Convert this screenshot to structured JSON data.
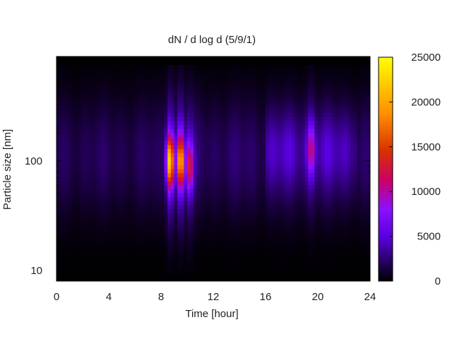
{
  "chart_data": {
    "type": "heatmap",
    "title": "dN / d log d (5/9/1)",
    "xlabel": "Time [hour]",
    "ylabel": "Particle size [nm]",
    "xlim": [
      0,
      24
    ],
    "ylim": [
      8,
      900
    ],
    "y_scale": "log",
    "x_ticks": [
      0,
      4,
      8,
      12,
      16,
      20,
      24
    ],
    "y_ticks": [
      10,
      100
    ],
    "colorbar": {
      "range": [
        0,
        25000
      ],
      "ticks": [
        0,
        5000,
        10000,
        15000,
        20000,
        25000
      ],
      "colormap": [
        "#000000",
        "#7a00ff",
        "#cc0044",
        "#ff8800",
        "#ffff00"
      ]
    },
    "grid": false,
    "features": [
      {
        "time_hour": 8.7,
        "size_nm": 100,
        "value": 17000
      },
      {
        "time_hour": 9.5,
        "size_nm": 100,
        "value": 15000
      },
      {
        "time_hour": 10.2,
        "size_nm": 90,
        "value": 9000
      },
      {
        "time_hour": 19.5,
        "size_nm": 130,
        "value": 6000
      }
    ]
  }
}
